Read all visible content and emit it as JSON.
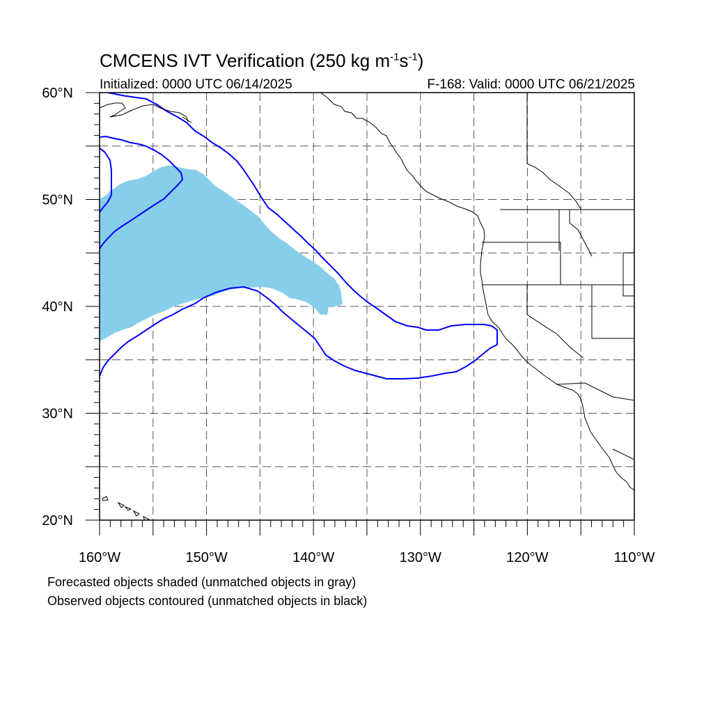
{
  "title": {
    "prefix": "CMCENS IVT Verification (250 kg m",
    "sup1": "-1",
    "mid": "s",
    "sup2": "-1",
    "suffix": ")"
  },
  "subtitle_left": "Initialized: 0000 UTC 06/14/2025",
  "subtitle_right": "F-168: Valid: 0000 UTC 06/21/2025",
  "map": {
    "lon_range": [
      -160,
      -110
    ],
    "lat_range": [
      20,
      60
    ],
    "lat_labels": [
      {
        "lat": 60,
        "text": "60°N"
      },
      {
        "lat": 50,
        "text": "50°N"
      },
      {
        "lat": 40,
        "text": "40°N"
      },
      {
        "lat": 30,
        "text": "30°N"
      },
      {
        "lat": 20,
        "text": "20°N"
      }
    ],
    "lon_labels": [
      {
        "lon": -160,
        "text": "160°W"
      },
      {
        "lon": -150,
        "text": "150°W"
      },
      {
        "lon": -140,
        "text": "140°W"
      },
      {
        "lon": -130,
        "text": "130°W"
      },
      {
        "lon": -120,
        "text": "120°W"
      },
      {
        "lon": -110,
        "text": "110°W"
      }
    ],
    "gridline_lats": [
      25,
      30,
      35,
      40,
      45,
      50,
      55
    ],
    "gridline_lons": [
      -155,
      -150,
      -145,
      -140,
      -135,
      -130,
      -125,
      -120,
      -115
    ],
    "forecast_fill_color": "#87ceeb",
    "observed_contour_color": "#0000ff",
    "coastline_color": "#000000"
  },
  "captions": [
    "Forecasted objects shaded (unmatched objects in gray)",
    "Observed objects contoured (unmatched objects in black)"
  ]
}
